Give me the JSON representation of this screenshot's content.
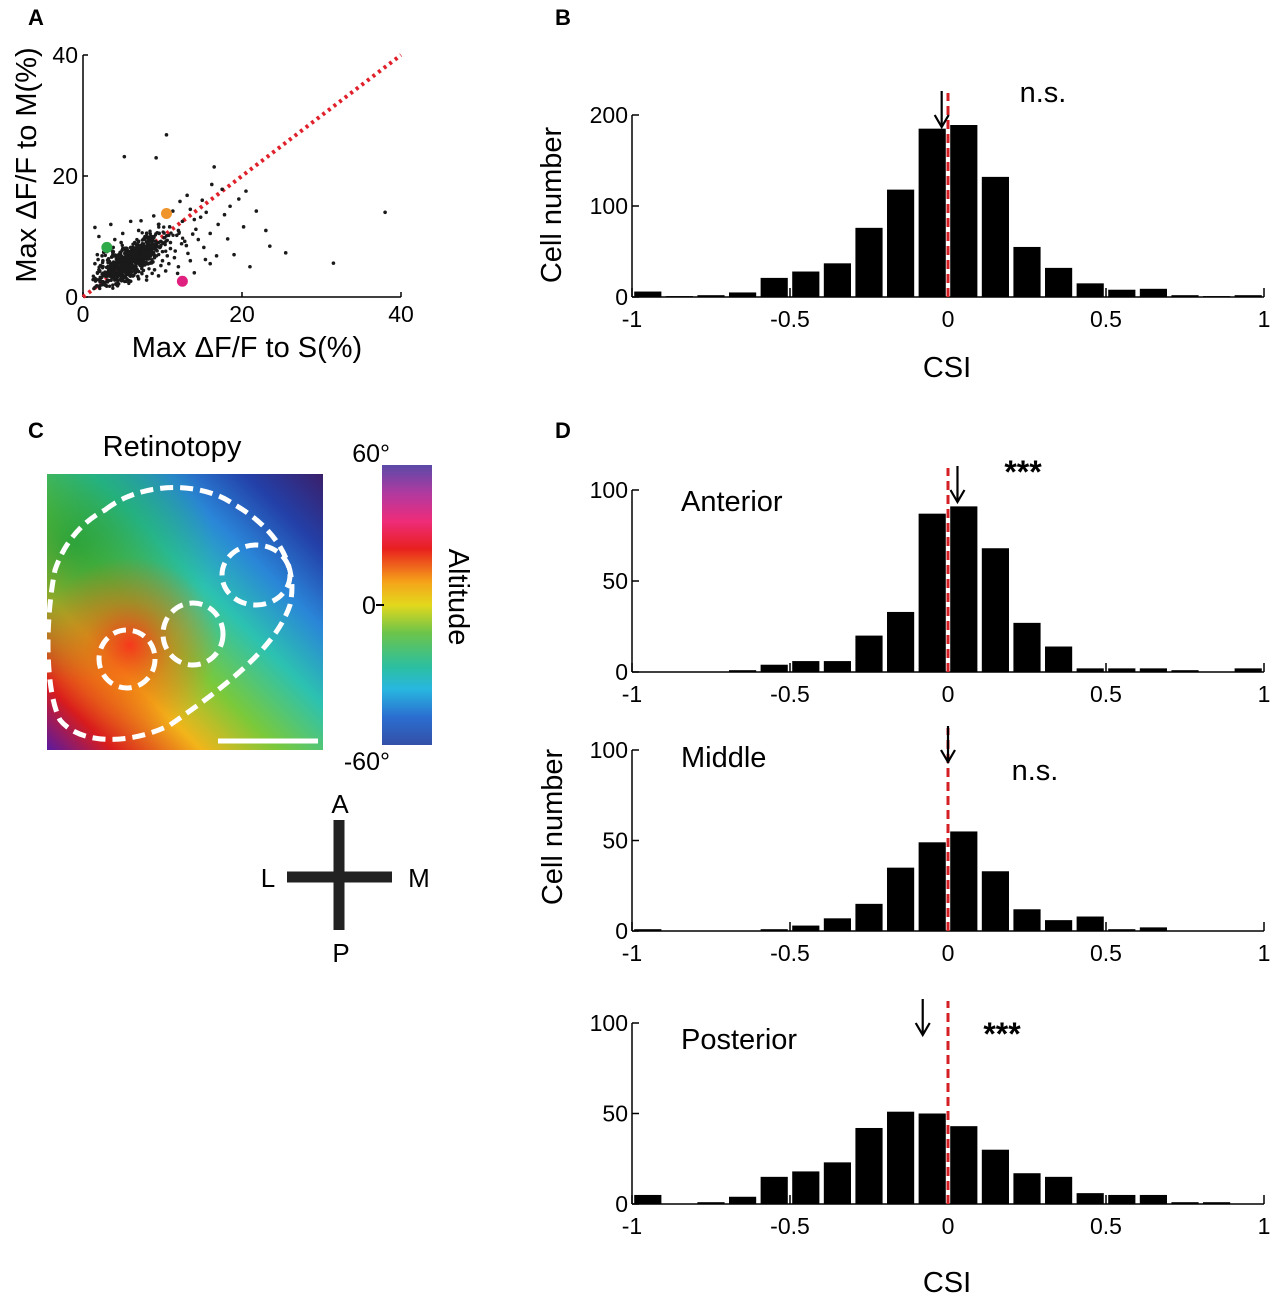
{
  "panels": {
    "A": "A",
    "B": "B",
    "C": "C",
    "D": "D"
  },
  "chart_data": [
    {
      "id": "A",
      "type": "scatter",
      "xlabel": "Max ΔF/F to S(%)",
      "ylabel": "Max ΔF/F to M(%)",
      "xlim": [
        0,
        40
      ],
      "ylim": [
        0,
        40
      ],
      "xticks": [
        0,
        20,
        40
      ],
      "xtick_labels": [
        "0",
        "20",
        "40"
      ],
      "yticks": [
        0,
        20,
        40
      ],
      "ytick_labels": [
        "0",
        "20",
        "40"
      ],
      "reference_line": {
        "from": [
          0,
          0
        ],
        "to": [
          40,
          40
        ],
        "style": "dotted",
        "color": "#e0202a"
      },
      "points_color": "#1a1a1a",
      "highlight_points": [
        {
          "x": 3.0,
          "y": 8.2,
          "color": "#2eaa4a"
        },
        {
          "x": 10.5,
          "y": 13.8,
          "color": "#f0952b"
        },
        {
          "x": 12.5,
          "y": 2.6,
          "color": "#e0207e"
        }
      ],
      "points": [
        [
          10.5,
          26.8
        ],
        [
          9.2,
          23
        ],
        [
          5.2,
          23.2
        ],
        [
          16.5,
          21.5
        ],
        [
          38,
          14
        ],
        [
          31.5,
          5.6
        ],
        [
          25.5,
          7.3
        ],
        [
          23,
          11
        ],
        [
          20.5,
          17.5
        ],
        [
          17.5,
          17.8
        ],
        [
          15.5,
          14
        ],
        [
          14,
          12.8
        ],
        [
          13.5,
          14.5
        ],
        [
          12,
          11
        ],
        [
          11,
          9
        ],
        [
          13,
          8.5
        ],
        [
          9.5,
          12
        ],
        [
          8,
          10.5
        ],
        [
          7,
          11
        ],
        [
          6,
          12.5
        ],
        [
          3.5,
          12
        ],
        [
          1.5,
          11.5
        ],
        [
          2,
          10
        ],
        [
          4,
          9.5
        ],
        [
          5,
          8
        ],
        [
          6.5,
          9
        ],
        [
          7.5,
          7
        ],
        [
          8.5,
          8
        ],
        [
          9.5,
          9
        ],
        [
          10,
          7.5
        ],
        [
          11.5,
          6.5
        ],
        [
          12,
          5
        ],
        [
          13.5,
          6
        ],
        [
          10.8,
          5.5
        ],
        [
          9,
          4.5
        ],
        [
          8,
          5.5
        ],
        [
          7,
          4.2
        ],
        [
          6,
          5
        ],
        [
          5.5,
          6
        ],
        [
          4.5,
          5
        ],
        [
          3.5,
          5.5
        ],
        [
          2.5,
          6
        ],
        [
          2,
          4.5
        ],
        [
          3,
          3.5
        ],
        [
          4,
          2.8
        ],
        [
          5,
          3.2
        ],
        [
          6,
          2.6
        ],
        [
          7,
          3
        ],
        [
          8,
          2.8
        ],
        [
          1.8,
          7
        ],
        [
          1.5,
          5.5
        ],
        [
          3,
          7.5
        ],
        [
          4.5,
          7
        ],
        [
          6,
          7.2
        ],
        [
          7.5,
          8.5
        ],
        [
          9,
          6.5
        ],
        [
          10,
          6
        ],
        [
          11,
          8
        ],
        [
          14.5,
          9.5
        ],
        [
          16,
          10.5
        ],
        [
          17,
          12
        ],
        [
          18.5,
          15
        ],
        [
          15,
          16
        ],
        [
          12.5,
          12.5
        ],
        [
          19,
          7
        ],
        [
          21,
          5
        ],
        [
          16,
          5.5
        ],
        [
          14,
          4
        ],
        [
          9.5,
          3.5
        ],
        [
          8.5,
          9.5
        ],
        [
          5,
          10.5
        ],
        [
          6.8,
          6
        ],
        [
          4.2,
          6.3
        ],
        [
          3.2,
          4.4
        ],
        [
          5.8,
          4.1
        ],
        [
          7.2,
          5.2
        ],
        [
          8.2,
          6.8
        ],
        [
          9.2,
          7.8
        ],
        [
          10.2,
          9.8
        ],
        [
          11.8,
          10.2
        ],
        [
          12.8,
          9.2
        ],
        [
          6.3,
          8.2
        ],
        [
          2.8,
          8.6
        ],
        [
          4.8,
          9
        ],
        [
          7.8,
          9.8
        ],
        [
          13.2,
          7.2
        ],
        [
          15.2,
          8.2
        ],
        [
          16.8,
          6.8
        ],
        [
          2.2,
          5.2
        ],
        [
          3.8,
          8.2
        ],
        [
          5.2,
          5.4
        ],
        [
          6.2,
          6.6
        ],
        [
          7.4,
          6.8
        ],
        [
          4.6,
          4.2
        ],
        [
          5.6,
          3.8
        ],
        [
          3.6,
          6.6
        ],
        [
          8.8,
          5.8
        ],
        [
          10.6,
          6.8
        ],
        [
          11.6,
          7.6
        ],
        [
          12.4,
          8.8
        ],
        [
          14.2,
          11.2
        ],
        [
          13.8,
          10.4
        ],
        [
          2.6,
          7.4
        ],
        [
          1.9,
          6.2
        ],
        [
          4.4,
          5.8
        ],
        [
          5.4,
          7.6
        ],
        [
          6.6,
          4.6
        ],
        [
          7.6,
          4.4
        ],
        [
          9.8,
          5.2
        ],
        [
          8.4,
          7.4
        ],
        [
          3.1,
          6.1
        ],
        [
          4.1,
          4.9
        ],
        [
          5.1,
          6.3
        ],
        [
          6.1,
          5.5
        ],
        [
          7.1,
          6.1
        ],
        [
          3.4,
          5.1
        ],
        [
          4.3,
          3.7
        ],
        [
          5.3,
          4.6
        ],
        [
          6.4,
          3.6
        ],
        [
          2.4,
          6.8
        ],
        [
          12.2,
          15.8
        ],
        [
          14.8,
          13.2
        ],
        [
          17.8,
          13.6
        ],
        [
          19.6,
          16.2
        ],
        [
          21.8,
          14.2
        ],
        [
          23.5,
          8.4
        ],
        [
          18.2,
          9.6
        ],
        [
          20.2,
          11.6
        ],
        [
          8.9,
          13.4
        ],
        [
          7.3,
          12.6
        ],
        [
          10.9,
          11.6
        ],
        [
          11.3,
          14.2
        ],
        [
          13.1,
          16.8
        ],
        [
          16.2,
          18.6
        ],
        [
          4.9,
          3.2
        ],
        [
          6.9,
          3.4
        ],
        [
          8.7,
          3.9
        ],
        [
          10.4,
          4.3
        ],
        [
          11.9,
          3.9
        ],
        [
          15.4,
          6.2
        ]
      ]
    },
    {
      "id": "B",
      "type": "bar",
      "xlabel": "CSI",
      "ylabel": "Cell number",
      "xlim": [
        -1,
        1
      ],
      "ylim": [
        0,
        200
      ],
      "xticks": [
        -1,
        -0.5,
        0,
        0.5,
        1
      ],
      "xtick_labels": [
        "-1",
        "-0.5",
        "0",
        "0.5",
        "1"
      ],
      "yticks": [
        0,
        100,
        200
      ],
      "ytick_labels": [
        "0",
        "100",
        "200"
      ],
      "bin_centers": [
        -0.95,
        -0.85,
        -0.75,
        -0.65,
        -0.55,
        -0.45,
        -0.35,
        -0.25,
        -0.15,
        -0.05,
        0.05,
        0.15,
        0.25,
        0.35,
        0.45,
        0.55,
        0.65,
        0.75,
        0.85,
        0.95
      ],
      "values": [
        6,
        1,
        2,
        5,
        21,
        28,
        37,
        76,
        118,
        185,
        189,
        132,
        55,
        32,
        15,
        8,
        9,
        2,
        1,
        2
      ],
      "median_arrow": -0.02,
      "zero_line": 0,
      "significance": "n.s."
    },
    {
      "id": "D-anterior",
      "type": "bar",
      "title": "Anterior",
      "xlim": [
        -1,
        1
      ],
      "ylim": [
        0,
        100
      ],
      "xticks": [
        -1,
        -0.5,
        0,
        0.5,
        1
      ],
      "xtick_labels": [
        "-1",
        "-0.5",
        "0",
        "0.5",
        "1"
      ],
      "yticks": [
        0,
        50,
        100
      ],
      "ytick_labels": [
        "0",
        "50",
        "100"
      ],
      "bin_centers": [
        -0.95,
        -0.85,
        -0.75,
        -0.65,
        -0.55,
        -0.45,
        -0.35,
        -0.25,
        -0.15,
        -0.05,
        0.05,
        0.15,
        0.25,
        0.35,
        0.45,
        0.55,
        0.65,
        0.75,
        0.85,
        0.95
      ],
      "values": [
        0,
        0,
        0,
        1,
        4,
        6,
        6,
        20,
        33,
        87,
        91,
        68,
        27,
        14,
        2,
        2,
        2,
        1,
        0,
        2
      ],
      "median_arrow": 0.03,
      "zero_line": 0,
      "significance": "***"
    },
    {
      "id": "D-middle",
      "type": "bar",
      "title": "Middle",
      "ylabel": "Cell number",
      "xlim": [
        -1,
        1
      ],
      "ylim": [
        0,
        100
      ],
      "xticks": [
        -1,
        -0.5,
        0,
        0.5,
        1
      ],
      "xtick_labels": [
        "-1",
        "-0.5",
        "0",
        "0.5",
        "1"
      ],
      "yticks": [
        0,
        50,
        100
      ],
      "ytick_labels": [
        "0",
        "50",
        "100"
      ],
      "bin_centers": [
        -0.95,
        -0.85,
        -0.75,
        -0.65,
        -0.55,
        -0.45,
        -0.35,
        -0.25,
        -0.15,
        -0.05,
        0.05,
        0.15,
        0.25,
        0.35,
        0.45,
        0.55,
        0.65,
        0.75,
        0.85,
        0.95
      ],
      "values": [
        1,
        0,
        0,
        0,
        1,
        3,
        7,
        15,
        35,
        49,
        55,
        33,
        12,
        6,
        8,
        1,
        2,
        0,
        0,
        0
      ],
      "median_arrow": 0.0,
      "zero_line": 0,
      "significance": "n.s."
    },
    {
      "id": "D-posterior",
      "type": "bar",
      "title": "Posterior",
      "xlabel": "CSI",
      "xlim": [
        -1,
        1
      ],
      "ylim": [
        0,
        100
      ],
      "xticks": [
        -1,
        -0.5,
        0,
        0.5,
        1
      ],
      "xtick_labels": [
        "-1",
        "-0.5",
        "0",
        "0.5",
        "1"
      ],
      "yticks": [
        0,
        50,
        100
      ],
      "ytick_labels": [
        "0",
        "50",
        "100"
      ],
      "bin_centers": [
        -0.95,
        -0.85,
        -0.75,
        -0.65,
        -0.55,
        -0.45,
        -0.35,
        -0.25,
        -0.15,
        -0.05,
        0.05,
        0.15,
        0.25,
        0.35,
        0.45,
        0.55,
        0.65,
        0.75,
        0.85,
        0.95
      ],
      "values": [
        5,
        0,
        1,
        4,
        15,
        18,
        23,
        42,
        51,
        50,
        43,
        30,
        17,
        15,
        6,
        5,
        5,
        1,
        1,
        0
      ],
      "median_arrow": -0.08,
      "zero_line": 0,
      "significance": "***"
    }
  ],
  "panel_C": {
    "title": "Retinotopy",
    "colorbar": {
      "label": "Altitude",
      "top": "60°",
      "middle": "0",
      "bottom": "-60°"
    },
    "orientation": {
      "anterior": "A",
      "posterior": "P",
      "lateral": "L",
      "medial": "M"
    }
  }
}
